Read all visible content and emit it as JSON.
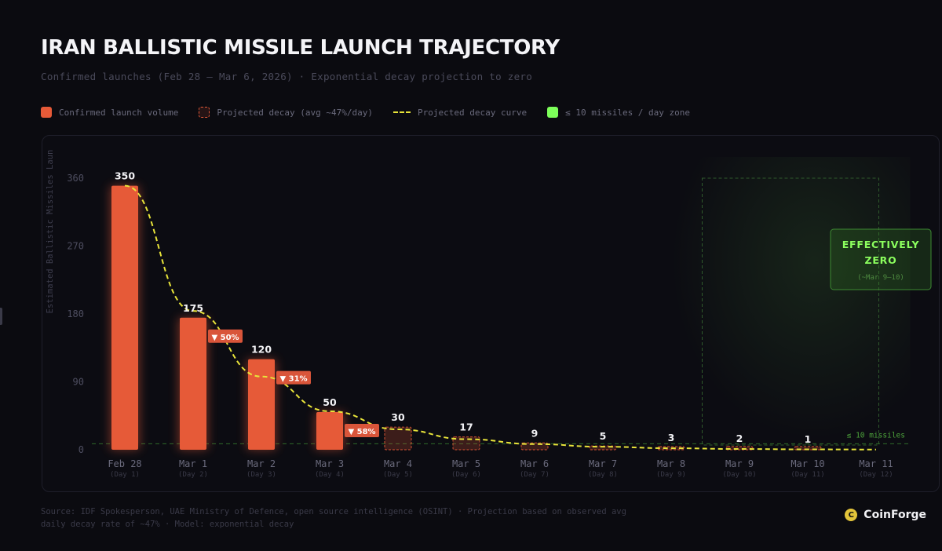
{
  "header": {
    "title": "IRAN BALLISTIC MISSILE LAUNCH TRAJECTORY",
    "subtitle": "Confirmed launches (Feb 28 – Mar 6, 2026) · Exponential decay projection to zero"
  },
  "legend": [
    {
      "label": "Confirmed launch volume",
      "icon": "solid-square"
    },
    {
      "label": "Projected decay (avg ~47%/day)",
      "icon": "dashed-square"
    },
    {
      "label": "Projected decay curve",
      "icon": "dashed-line"
    },
    {
      "label": "≤ 10 missiles / day zone",
      "icon": "green-square"
    }
  ],
  "colors": {
    "confirmed": "#e65a38",
    "projected": "#e65a38",
    "curve": "#e8e43a",
    "zone": "#7dff5a"
  },
  "chart_data": {
    "type": "bar",
    "ylabel": "Estimated Ballistic Missiles Laun",
    "ylim": [
      0,
      360
    ],
    "yticks": [
      0,
      90,
      180,
      270,
      360
    ],
    "categories": [
      "Feb 28",
      "Mar 1",
      "Mar 2",
      "Mar 3",
      "Mar 4",
      "Mar 5",
      "Mar 6",
      "Mar 7",
      "Mar 8",
      "Mar 9",
      "Mar 10",
      "Mar 11"
    ],
    "sublabels": [
      "(Day 1)",
      "(Day 2)",
      "(Day 3)",
      "(Day 4)",
      "(Day 5)",
      "(Day 6)",
      "(Day 7)",
      "(Day 8)",
      "(Day 9)",
      "(Day 10)",
      "(Day 11)",
      "(Day 12)"
    ],
    "values": [
      350,
      175,
      120,
      50,
      30,
      17,
      9,
      5,
      3,
      2,
      1,
      null
    ],
    "kind": [
      "confirmed",
      "confirmed",
      "confirmed",
      "confirmed",
      "projected",
      "projected",
      "projected",
      "projected",
      "projected",
      "projected",
      "projected",
      "projected"
    ],
    "drops": [
      {
        "index": 1,
        "label": "▼ 50%"
      },
      {
        "index": 2,
        "label": "▼ 31%"
      },
      {
        "index": 3,
        "label": "▼ 58%"
      }
    ],
    "curve": {
      "x": [
        0,
        1,
        2,
        3,
        4,
        5,
        6,
        7,
        8,
        9,
        10,
        11
      ],
      "y": [
        350,
        184,
        97,
        51,
        27,
        14,
        7.5,
        4,
        2,
        1,
        0.5,
        0.3
      ]
    },
    "threshold": {
      "value": 10,
      "label": "≤ 10 missiles"
    },
    "zone": {
      "from_index": 8.5,
      "to_index": 11.5,
      "title_lines": [
        "EFFECTIVELY",
        "ZERO"
      ],
      "note": "(~Mar 9–10)"
    }
  },
  "footer": {
    "line1": "Source: IDF Spokesperson, UAE Ministry of Defence, open source intelligence (OSINT) · Projection based on observed avg",
    "line2": "daily decay rate of ~47% · Model: exponential decay"
  },
  "brand": {
    "name": "CoinForge",
    "logo": "C"
  }
}
